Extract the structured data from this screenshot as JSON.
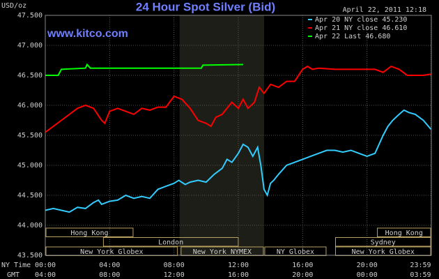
{
  "chart_data": {
    "type": "line",
    "title": "24 Hour Spot Silver (Bid)",
    "subtitle": "www.kitco.com",
    "timestamp": "April 22, 2011 12:18",
    "ylabel": "USD/oz",
    "xlabel": "NY Time",
    "x2label": "GMT",
    "xlim": [
      0,
      24
    ],
    "ylim": [
      43.5,
      47.5
    ],
    "grid": true,
    "highlight_range": [
      8.35,
      13.6
    ],
    "yticks": [
      {
        "value": 43.5,
        "label": "43.500"
      },
      {
        "value": 44.0,
        "label": "44.000"
      },
      {
        "value": 44.5,
        "label": "44.500"
      },
      {
        "value": 45.0,
        "label": "45.000"
      },
      {
        "value": 45.5,
        "label": "45.500"
      },
      {
        "value": 46.0,
        "label": "46.000"
      },
      {
        "value": 46.5,
        "label": "46.500"
      },
      {
        "value": 47.0,
        "label": "47.000"
      },
      {
        "value": 47.5,
        "label": "47.500"
      }
    ],
    "xticks": [
      {
        "value": 0,
        "label": "00:00"
      },
      {
        "value": 4,
        "label": "04:00"
      },
      {
        "value": 8,
        "label": "08:00"
      },
      {
        "value": 12,
        "label": "12:00"
      },
      {
        "value": 16,
        "label": "16:00"
      },
      {
        "value": 20,
        "label": "20:00"
      },
      {
        "value": 23.98,
        "label": "23:59"
      }
    ],
    "x2ticks": [
      {
        "value": 0,
        "label": "04:00"
      },
      {
        "value": 4,
        "label": "08:00"
      },
      {
        "value": 8,
        "label": "12:00"
      },
      {
        "value": 12,
        "label": "16:00"
      },
      {
        "value": 16,
        "label": "20:00"
      },
      {
        "value": 20,
        "label": "00:00"
      },
      {
        "value": 23.98,
        "label": "03:59"
      }
    ],
    "series": [
      {
        "name": "Apr 20 NY close 45.230",
        "color": "#33ccff",
        "x": [
          0,
          0.5,
          1,
          1.5,
          2,
          2.5,
          3,
          3.3,
          3.5,
          4,
          4.5,
          5,
          5.5,
          6,
          6.5,
          7,
          7.5,
          8,
          8.3,
          8.7,
          9,
          9.5,
          10,
          10.5,
          11,
          11.3,
          11.6,
          12,
          12.3,
          12.6,
          12.9,
          13.2,
          13.4,
          13.6,
          13.8,
          14,
          14.2,
          14.5,
          15,
          15.5,
          16,
          16.5,
          17,
          17.5,
          18,
          18.5,
          19,
          19.5,
          20,
          20.5,
          21,
          21.3,
          21.6,
          22,
          22.3,
          22.6,
          23,
          23.5,
          23.98
        ],
        "values": [
          44.25,
          44.28,
          44.25,
          44.22,
          44.3,
          44.28,
          44.38,
          44.42,
          44.35,
          44.4,
          44.42,
          44.5,
          44.45,
          44.48,
          44.45,
          44.6,
          44.65,
          44.7,
          44.75,
          44.68,
          44.72,
          44.75,
          44.72,
          44.85,
          44.95,
          45.1,
          45.05,
          45.2,
          45.35,
          45.3,
          45.15,
          45.3,
          45.0,
          44.6,
          44.5,
          44.7,
          44.75,
          44.85,
          45.0,
          45.05,
          45.1,
          45.15,
          45.2,
          45.25,
          45.25,
          45.22,
          45.25,
          45.2,
          45.15,
          45.2,
          45.5,
          45.65,
          45.75,
          45.85,
          45.92,
          45.88,
          45.85,
          45.75,
          45.6
        ]
      },
      {
        "name": "Apr 21 NY close 46.610",
        "color": "#ff0000",
        "x": [
          0,
          1,
          2,
          2.5,
          3,
          3.5,
          3.7,
          4,
          4.5,
          5,
          5.5,
          6,
          6.5,
          7,
          7.5,
          8,
          8.5,
          9,
          9.5,
          10,
          10.3,
          10.6,
          11,
          11.3,
          11.6,
          12,
          12.3,
          12.6,
          13,
          13.3,
          13.6,
          14,
          14.5,
          15,
          15.5,
          16,
          16.3,
          16.6,
          17,
          18,
          19,
          20,
          20.5,
          21,
          21.5,
          22,
          22.5,
          23,
          23.5,
          23.98
        ],
        "values": [
          45.55,
          45.75,
          45.95,
          46.0,
          45.95,
          45.75,
          45.7,
          45.9,
          45.95,
          45.9,
          45.85,
          45.95,
          45.92,
          45.97,
          45.97,
          46.15,
          46.1,
          45.95,
          45.75,
          45.7,
          45.65,
          45.8,
          45.85,
          45.95,
          46.05,
          45.95,
          46.1,
          45.95,
          46.05,
          46.3,
          46.2,
          46.35,
          46.3,
          46.4,
          46.4,
          46.6,
          46.65,
          46.6,
          46.62,
          46.6,
          46.6,
          46.6,
          46.6,
          46.55,
          46.65,
          46.6,
          46.5,
          46.5,
          46.5,
          46.52
        ]
      },
      {
        "name": "Apr 22 Last 46.680",
        "color": "#00ff00",
        "x": [
          0,
          0.8,
          1,
          2.5,
          2.6,
          2.8,
          9.7,
          9.8,
          12.3
        ],
        "values": [
          46.5,
          46.5,
          46.6,
          46.62,
          46.68,
          46.62,
          46.62,
          46.67,
          46.68
        ]
      }
    ],
    "sessions": [
      {
        "label": "Hong Kong",
        "row": 0,
        "start": 0,
        "end": 5.5
      },
      {
        "label": "Hong Kong",
        "row": 0,
        "start": 20.6,
        "end": 24
      },
      {
        "label": "London",
        "row": 1,
        "start": 3.57,
        "end": 12.04
      },
      {
        "label": "Sydney",
        "row": 1,
        "start": 18,
        "end": 24
      },
      {
        "label": "New York Globex",
        "row": 2,
        "start": 0,
        "end": 8.26
      },
      {
        "label": "New York NYMEX",
        "row": 2,
        "start": 8.4,
        "end": 13.6
      },
      {
        "label": "NY Globex",
        "row": 2,
        "start": 13.6,
        "end": 17.5
      },
      {
        "label": "New York Globex",
        "row": 2,
        "start": 18,
        "end": 24
      }
    ]
  }
}
